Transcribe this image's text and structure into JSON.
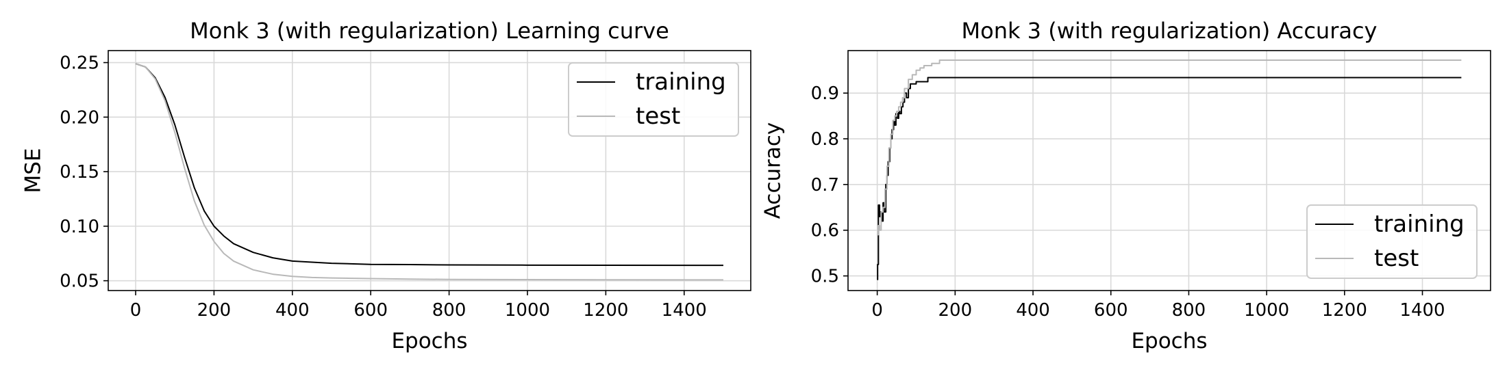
{
  "chart_data": [
    {
      "type": "line",
      "title": "Monk 3 (with regularization) Learning curve",
      "xlabel": "Epochs",
      "ylabel": "MSE",
      "xlim": [
        -70,
        1570
      ],
      "ylim": [
        0.041,
        0.261
      ],
      "xticks": [
        0,
        200,
        400,
        600,
        800,
        1000,
        1200,
        1400
      ],
      "yticks": [
        0.05,
        0.1,
        0.15,
        0.2,
        0.25
      ],
      "ytick_labels": [
        "0.05",
        "0.10",
        "0.15",
        "0.20",
        "0.25"
      ],
      "grid": true,
      "legend_position": "top-right",
      "series": [
        {
          "name": "training",
          "color": "#000000",
          "x": [
            0,
            25,
            50,
            75,
            100,
            125,
            150,
            175,
            200,
            225,
            250,
            300,
            350,
            400,
            450,
            500,
            600,
            700,
            800,
            1000,
            1200,
            1500
          ],
          "y": [
            0.249,
            0.246,
            0.236,
            0.218,
            0.193,
            0.163,
            0.135,
            0.114,
            0.1,
            0.091,
            0.084,
            0.076,
            0.071,
            0.068,
            0.067,
            0.066,
            0.065,
            0.0648,
            0.0645,
            0.0643,
            0.0642,
            0.0641
          ]
        },
        {
          "name": "test",
          "color": "#b8b8b8",
          "x": [
            0,
            25,
            50,
            75,
            100,
            125,
            150,
            175,
            200,
            225,
            250,
            300,
            350,
            400,
            450,
            500,
            600,
            700,
            800,
            1000,
            1200,
            1500
          ],
          "y": [
            0.249,
            0.246,
            0.235,
            0.215,
            0.186,
            0.153,
            0.123,
            0.101,
            0.086,
            0.075,
            0.068,
            0.06,
            0.056,
            0.054,
            0.053,
            0.0525,
            0.052,
            0.0515,
            0.0512,
            0.051,
            0.0509,
            0.0508
          ]
        }
      ]
    },
    {
      "type": "line",
      "title": "Monk 3 (with regularization) Accuracy",
      "xlabel": "Epochs",
      "ylabel": "Accuracy",
      "xlim": [
        -75,
        1575
      ],
      "ylim": [
        0.468,
        0.993
      ],
      "xticks": [
        0,
        200,
        400,
        600,
        800,
        1000,
        1200,
        1400
      ],
      "yticks": [
        0.5,
        0.6,
        0.7,
        0.8,
        0.9
      ],
      "ytick_labels": [
        "0.5",
        "0.6",
        "0.7",
        "0.8",
        "0.9"
      ],
      "grid": true,
      "legend_position": "lower-right",
      "series": [
        {
          "name": "training",
          "color": "#000000",
          "step": true,
          "x": [
            0,
            1,
            3,
            6,
            8,
            12,
            15,
            18,
            22,
            25,
            28,
            32,
            35,
            38,
            42,
            45,
            48,
            52,
            55,
            58,
            62,
            66,
            70,
            75,
            80,
            85,
            90,
            100,
            115,
            130,
            1500
          ],
          "y": [
            0.492,
            0.525,
            0.655,
            0.63,
            0.64,
            0.62,
            0.66,
            0.64,
            0.7,
            0.72,
            0.75,
            0.78,
            0.8,
            0.82,
            0.84,
            0.83,
            0.855,
            0.845,
            0.86,
            0.855,
            0.87,
            0.88,
            0.9,
            0.89,
            0.91,
            0.92,
            0.92,
            0.925,
            0.925,
            0.934,
            0.934
          ]
        },
        {
          "name": "test",
          "color": "#b8b8b8",
          "step": true,
          "x": [
            0,
            3,
            6,
            10,
            15,
            20,
            25,
            30,
            35,
            40,
            45,
            50,
            55,
            60,
            65,
            70,
            80,
            90,
            100,
            110,
            120,
            140,
            160,
            1500
          ],
          "y": [
            0.59,
            0.61,
            0.6,
            0.64,
            0.65,
            0.69,
            0.74,
            0.78,
            0.81,
            0.84,
            0.85,
            0.86,
            0.87,
            0.88,
            0.89,
            0.91,
            0.93,
            0.94,
            0.95,
            0.955,
            0.96,
            0.965,
            0.972,
            0.972
          ]
        }
      ]
    }
  ]
}
